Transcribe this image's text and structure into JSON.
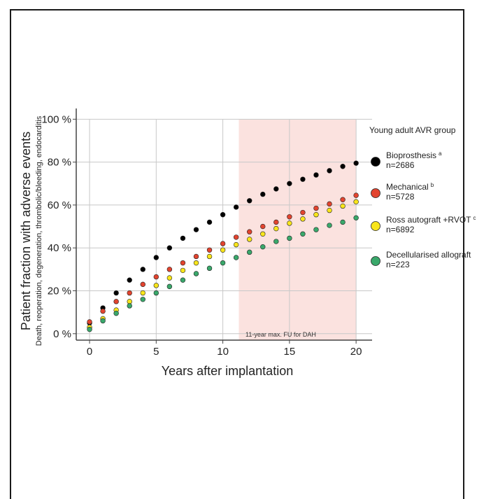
{
  "chart_data": {
    "type": "scatter",
    "xlabel": "Years after implantation",
    "ylabel": "Patient fraction with adverse events",
    "ylabel_sub": "Death, reoperation, degeneration, thrombolic/bleeding, endocarditis",
    "xlim": [
      -1,
      21.2
    ],
    "ylim": [
      -3,
      105
    ],
    "x_ticks": [
      0,
      5,
      10,
      15,
      20
    ],
    "y_ticks": [
      0,
      20,
      40,
      60,
      80,
      100
    ],
    "y_tick_labels": [
      "0 %",
      "20 %",
      "40 %",
      "60 %",
      "80 %",
      "100 %"
    ],
    "grid": true,
    "shaded_region": {
      "x_start": 11.2,
      "x_end": 20,
      "color": "#fbe2df",
      "label": "11-year max. FU for DAH"
    },
    "legend": {
      "title": "Young adult AVR group",
      "placement": "right"
    },
    "x": [
      0,
      1,
      2,
      3,
      4,
      5,
      6,
      7,
      8,
      9,
      10,
      11,
      12,
      13,
      14,
      15,
      16,
      17,
      18,
      19,
      20
    ],
    "series": [
      {
        "name": "Bioprosthesis",
        "superscript": "a",
        "n_label": "n=2686",
        "color": "#000000",
        "values": [
          5,
          12,
          19,
          25,
          30,
          35.5,
          40,
          44.5,
          48.5,
          52,
          55.5,
          59,
          62,
          65,
          67.5,
          70,
          72,
          74,
          76,
          78,
          79.5
        ]
      },
      {
        "name": "Mechanical",
        "superscript": "b",
        "n_label": "n=5728",
        "color": "#e2442f",
        "values": [
          5.5,
          10.5,
          15,
          19,
          23,
          26.5,
          30,
          33,
          36,
          39,
          42,
          45,
          47.5,
          50,
          52,
          54.5,
          56.5,
          58.5,
          60.5,
          62.5,
          64.5
        ]
      },
      {
        "name": "Ross autograft +RVOT",
        "superscript": "c",
        "n_label": "n=6892",
        "color": "#f8e51b",
        "values": [
          3,
          7,
          11,
          15,
          19,
          22.5,
          26,
          29.5,
          33,
          36,
          39,
          41.5,
          44,
          46.5,
          49,
          51.5,
          53.5,
          55.5,
          57.5,
          59.5,
          61.5
        ]
      },
      {
        "name": "Decellularised allograft",
        "superscript": "",
        "n_label": "n=223",
        "color": "#3aa86b",
        "values": [
          2,
          6,
          9.5,
          13,
          16,
          19,
          22,
          25,
          28,
          30.5,
          33,
          35.5,
          38,
          40.5,
          43,
          44.5,
          46.5,
          48.5,
          50.5,
          52,
          54
        ]
      }
    ]
  }
}
